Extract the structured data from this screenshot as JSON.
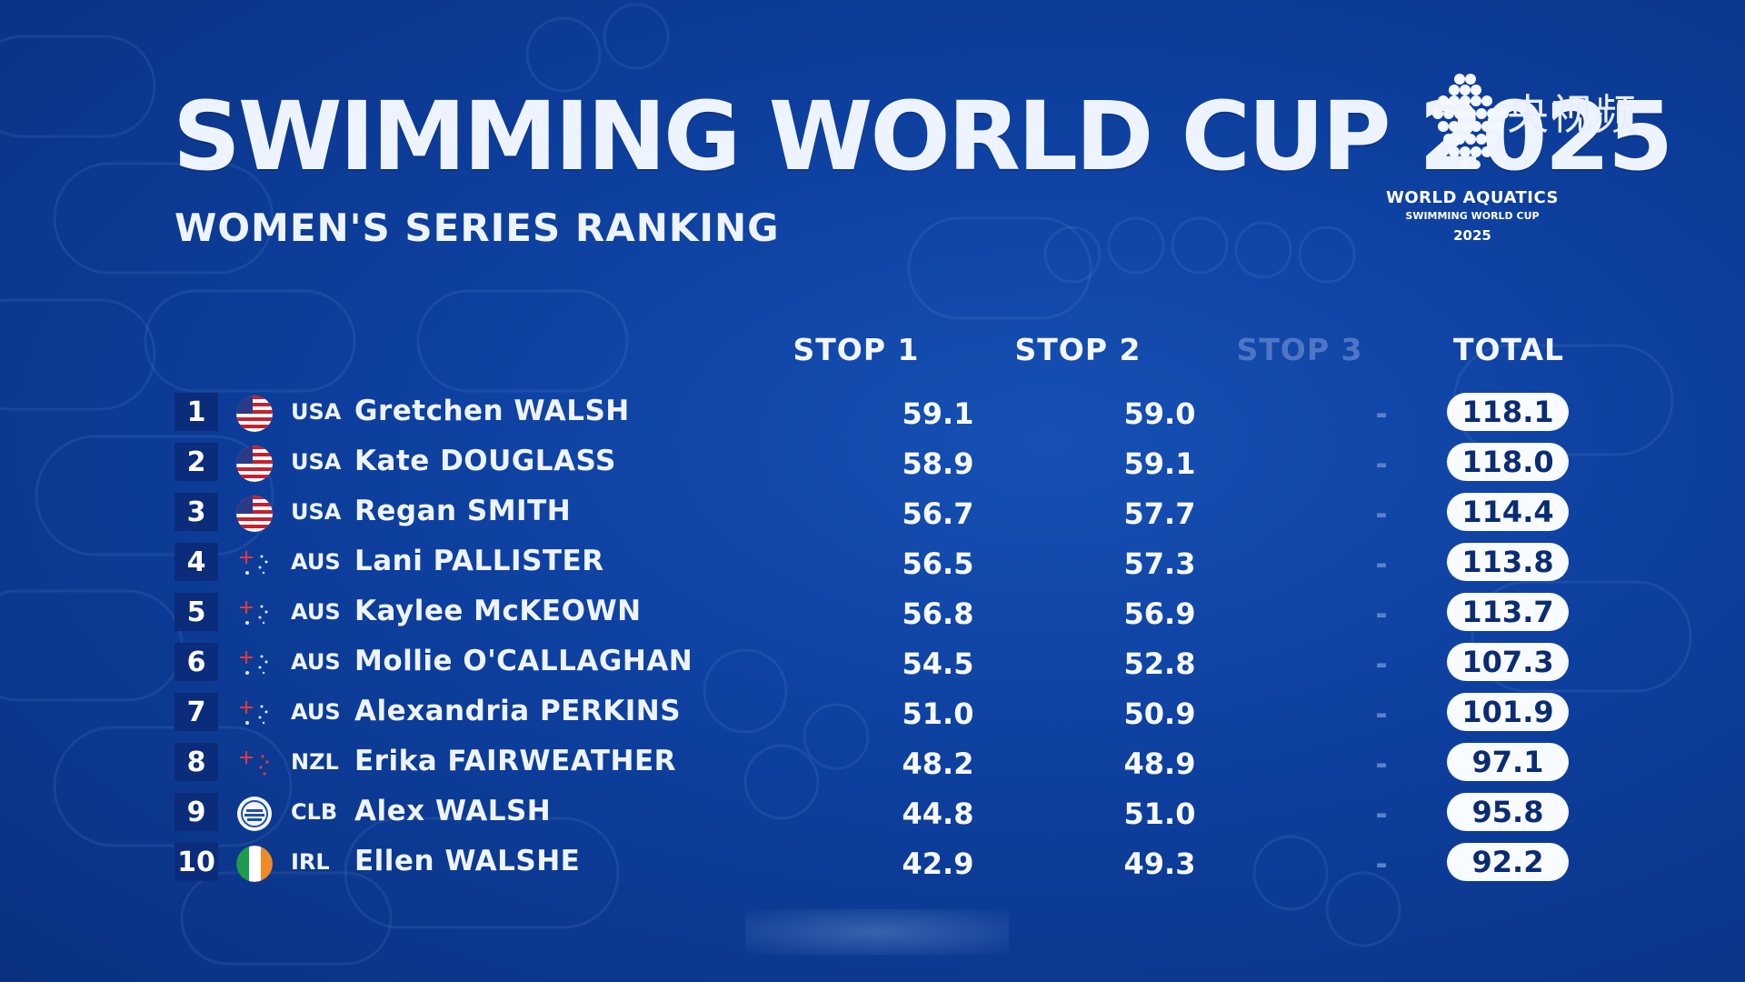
{
  "header": {
    "title": "SWIMMING WORLD CUP 2025",
    "subtitle": "WOMEN'S SERIES RANKING"
  },
  "logo": {
    "line1": "WORLD AQUATICS",
    "line2": "SWIMMING WORLD CUP",
    "line3": "2025"
  },
  "watermark": "央视频",
  "columns": {
    "stop1": "STOP 1",
    "stop2": "STOP 2",
    "stop3": "STOP 3",
    "total": "TOTAL"
  },
  "rows": [
    {
      "rank": "1",
      "flag": "usa-flag-icon",
      "nation": "USA",
      "name": "Gretchen WALSH",
      "stop1": "59.1",
      "stop2": "59.0",
      "stop3": "-",
      "total": "118.1"
    },
    {
      "rank": "2",
      "flag": "usa-flag-icon",
      "nation": "USA",
      "name": "Kate DOUGLASS",
      "stop1": "58.9",
      "stop2": "59.1",
      "stop3": "-",
      "total": "118.0"
    },
    {
      "rank": "3",
      "flag": "usa-flag-icon",
      "nation": "USA",
      "name": "Regan SMITH",
      "stop1": "56.7",
      "stop2": "57.7",
      "stop3": "-",
      "total": "114.4"
    },
    {
      "rank": "4",
      "flag": "aus-flag-icon",
      "nation": "AUS",
      "name": "Lani PALLISTER",
      "stop1": "56.5",
      "stop2": "57.3",
      "stop3": "-",
      "total": "113.8"
    },
    {
      "rank": "5",
      "flag": "aus-flag-icon",
      "nation": "AUS",
      "name": "Kaylee McKEOWN",
      "stop1": "56.8",
      "stop2": "56.9",
      "stop3": "-",
      "total": "113.7"
    },
    {
      "rank": "6",
      "flag": "aus-flag-icon",
      "nation": "AUS",
      "name": "Mollie O'CALLAGHAN",
      "stop1": "54.5",
      "stop2": "52.8",
      "stop3": "-",
      "total": "107.3"
    },
    {
      "rank": "7",
      "flag": "aus-flag-icon",
      "nation": "AUS",
      "name": "Alexandria PERKINS",
      "stop1": "51.0",
      "stop2": "50.9",
      "stop3": "-",
      "total": "101.9"
    },
    {
      "rank": "8",
      "flag": "nzl-flag-icon",
      "nation": "NZL",
      "name": "Erika FAIRWEATHER",
      "stop1": "48.2",
      "stop2": "48.9",
      "stop3": "-",
      "total": "97.1"
    },
    {
      "rank": "9",
      "flag": "clb-flag-icon",
      "nation": "CLB",
      "name": "Alex WALSH",
      "stop1": "44.8",
      "stop2": "51.0",
      "stop3": "-",
      "total": "95.8"
    },
    {
      "rank": "10",
      "flag": "irl-flag-icon",
      "nation": "IRL",
      "name": "Ellen WALSHE",
      "stop1": "42.9",
      "stop2": "49.3",
      "stop3": "-",
      "total": "92.2"
    }
  ],
  "colors": {
    "background": "#0d3f9e",
    "rank_box": "#0a2c7a",
    "total_pill": "#f8fbff",
    "total_text": "#0b2c73",
    "dim_column": "#4f76c4"
  }
}
